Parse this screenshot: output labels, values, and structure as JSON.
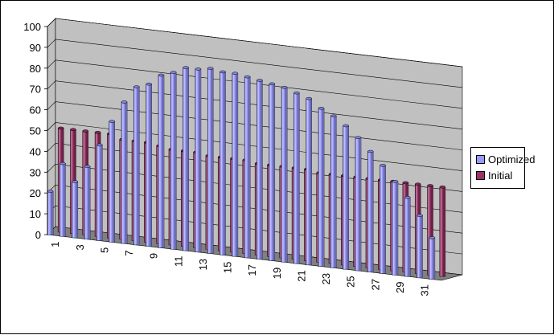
{
  "chart_data": {
    "type": "bar",
    "categories": [
      "1",
      "2",
      "3",
      "4",
      "5",
      "6",
      "7",
      "8",
      "9",
      "10",
      "11",
      "12",
      "13",
      "14",
      "15",
      "16",
      "17",
      "18",
      "19",
      "20",
      "21",
      "22",
      "23",
      "24",
      "25",
      "26",
      "27",
      "28",
      "29",
      "30",
      "31",
      "32"
    ],
    "x_tick_labels": [
      "1",
      "3",
      "5",
      "7",
      "9",
      "11",
      "13",
      "15",
      "17",
      "19",
      "21",
      "23",
      "25",
      "27",
      "29",
      "31"
    ],
    "y_tick_labels": [
      "0",
      "10",
      "20",
      "30",
      "40",
      "50",
      "60",
      "70",
      "80",
      "90",
      "100"
    ],
    "ylim": [
      0,
      100
    ],
    "grid": true,
    "legend_position": "right",
    "series": [
      {
        "name": "Optimized",
        "color": "#9999ff",
        "values": [
          21,
          35,
          27,
          35,
          46,
          58,
          68,
          76,
          78,
          83,
          85,
          88,
          88,
          89,
          88,
          88,
          87,
          86,
          85,
          84,
          82,
          80,
          76,
          73,
          69,
          64,
          58,
          52,
          45,
          38,
          30,
          20
        ]
      },
      {
        "name": "Initial",
        "color": "#993366",
        "values": [
          50,
          50,
          50,
          50,
          50,
          48,
          48,
          48,
          47,
          46,
          46,
          46,
          45,
          45,
          45,
          45,
          44,
          44,
          44,
          44,
          44,
          43,
          43,
          43,
          43,
          43,
          43,
          43,
          43,
          43,
          43,
          43
        ]
      }
    ],
    "colors": {
      "wall": "#c0c0c0",
      "floor": "#808080",
      "grid": "#000000"
    }
  }
}
